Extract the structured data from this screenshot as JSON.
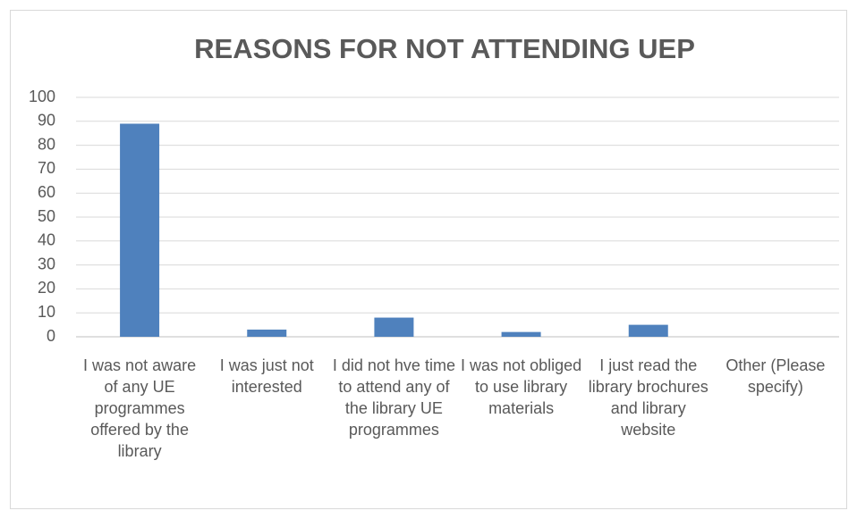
{
  "chart_data": {
    "type": "bar",
    "title": "REASONS FOR NOT ATTENDING UEP",
    "categories": [
      "I was not aware of any UE programmes offered by the library",
      "I was just not interested",
      "I did not hve time to attend any of the library UE programmes",
      "I was not obliged to use library materials",
      "I just read the library brochures and library website",
      "Other (Please specify)"
    ],
    "values": [
      89,
      3,
      8,
      2,
      5,
      0
    ],
    "color": "#4f81bd",
    "ylim": [
      0,
      100
    ],
    "yticks": [
      0,
      10,
      20,
      30,
      40,
      50,
      60,
      70,
      80,
      90,
      100
    ],
    "grid": true
  }
}
